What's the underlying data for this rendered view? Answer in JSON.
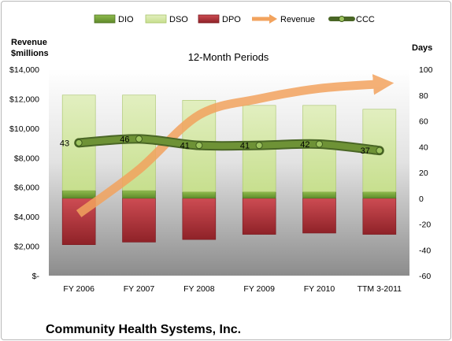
{
  "chart_data": {
    "type": "bar",
    "title": "12-Month Periods",
    "company": "Community Health Systems, Inc.",
    "categories": [
      "FY 2006",
      "FY 2007",
      "FY 2008",
      "FY 2009",
      "FY 2010",
      "TTM 3-2011"
    ],
    "left_axis": {
      "title_line1": "Revenue",
      "title_line2": "$millions",
      "range": [
        0,
        14000
      ],
      "ticks": [
        "$14,000",
        "$12,000",
        "$10,000",
        "$8,000",
        "$6,000",
        "$4,000",
        "$2,000",
        "$-"
      ]
    },
    "right_axis": {
      "title": "Days",
      "range": [
        -60,
        100
      ],
      "ticks": [
        "100",
        "80",
        "60",
        "40",
        "20",
        "0",
        "-20",
        "-40",
        "-60"
      ]
    },
    "series": [
      {
        "name": "DIO",
        "axis": "days",
        "color": "#76a13a",
        "values": [
          6,
          6,
          5,
          5,
          5,
          5
        ]
      },
      {
        "name": "DSO",
        "axis": "days",
        "color": "#d2e6a4",
        "values": [
          74,
          74,
          71,
          67,
          67,
          64
        ]
      },
      {
        "name": "DPO",
        "axis": "days",
        "color": "#b8343c",
        "values": [
          -36,
          -34,
          -32,
          -28,
          -27,
          -28
        ]
      },
      {
        "name": "Revenue",
        "axis": "revenue",
        "color": "#f2a35e",
        "values": [
          4200,
          7200,
          10900,
          12000,
          12700,
          13000
        ]
      },
      {
        "name": "CCC",
        "axis": "days",
        "color": "#5a7a32",
        "values": [
          43,
          46,
          41,
          41,
          42,
          37
        ]
      }
    ],
    "ccc_labels": [
      "43",
      "46",
      "41",
      "41",
      "42",
      "37"
    ]
  }
}
